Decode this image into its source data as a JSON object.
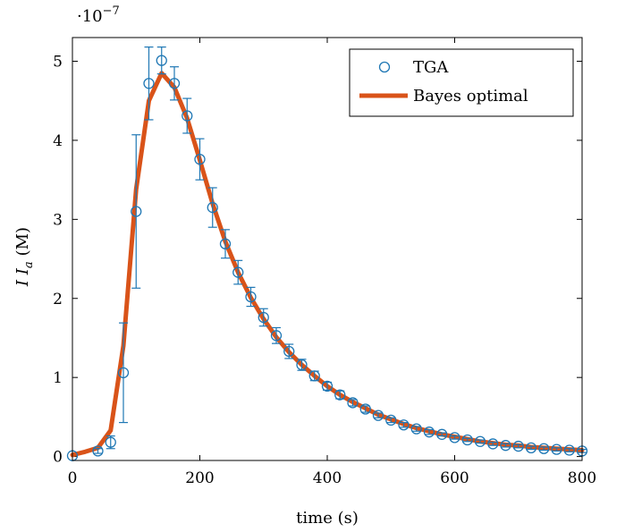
{
  "chart_data": {
    "type": "scatter",
    "title": "",
    "xlabel": "time (s)",
    "ylabel_main": "I I",
    "ylabel_sub": "a",
    "ylabel_unit": "(M)",
    "y_scale_base": "·10",
    "y_scale_exp": "−7",
    "xlim": [
      0,
      800
    ],
    "ylim": [
      -0.05,
      5.3
    ],
    "x_ticks": [
      0,
      200,
      400,
      600,
      800
    ],
    "x_tick_labels": [
      "0",
      "200",
      "400",
      "600",
      "800"
    ],
    "y_ticks": [
      0,
      1,
      2,
      3,
      4,
      5
    ],
    "y_tick_labels": [
      "0",
      "1",
      "2",
      "3",
      "4",
      "5"
    ],
    "grid": false,
    "legend_position": "top-right",
    "colors": {
      "tga": "#1f77b4",
      "bayes": "#d95319"
    },
    "series": [
      {
        "name": "TGA",
        "kind": "markers-with-errorbars",
        "x": [
          0,
          40,
          60,
          80,
          100,
          120,
          140,
          160,
          180,
          200,
          220,
          240,
          260,
          280,
          300,
          320,
          340,
          360,
          380,
          400,
          420,
          440,
          460,
          480,
          500,
          520,
          540,
          560,
          580,
          600,
          620,
          640,
          660,
          680,
          700,
          720,
          740,
          760,
          780,
          800
        ],
        "y": [
          0.01,
          0.07,
          0.18,
          1.06,
          3.1,
          4.72,
          5.01,
          4.72,
          4.31,
          3.76,
          3.15,
          2.69,
          2.33,
          2.02,
          1.76,
          1.53,
          1.33,
          1.16,
          1.02,
          0.89,
          0.78,
          0.68,
          0.6,
          0.52,
          0.46,
          0.4,
          0.35,
          0.31,
          0.28,
          0.24,
          0.21,
          0.19,
          0.16,
          0.14,
          0.13,
          0.11,
          0.1,
          0.09,
          0.08,
          0.07
        ],
        "err": [
          0.0,
          0.03,
          0.08,
          0.63,
          0.97,
          0.46,
          0.17,
          0.21,
          0.22,
          0.26,
          0.25,
          0.18,
          0.15,
          0.12,
          0.11,
          0.1,
          0.09,
          0.07,
          0.06,
          0.05,
          0.05,
          0.04,
          0.04,
          0.03,
          0.03,
          0.03,
          0.03,
          0.03,
          0.02,
          0.02,
          0.02,
          0.02,
          0.02,
          0.02,
          0.02,
          0.02,
          0.02,
          0.02,
          0.02,
          0.02
        ]
      },
      {
        "name": "Bayes optimal",
        "kind": "line",
        "x": [
          0,
          20,
          40,
          60,
          80,
          100,
          120,
          140,
          160,
          180,
          200,
          220,
          240,
          260,
          280,
          300,
          320,
          340,
          360,
          380,
          400,
          420,
          440,
          460,
          480,
          500,
          520,
          540,
          560,
          580,
          600,
          620,
          640,
          660,
          680,
          700,
          720,
          740,
          760,
          780,
          800
        ],
        "y": [
          0.02,
          0.06,
          0.11,
          0.33,
          1.4,
          3.38,
          4.5,
          4.85,
          4.67,
          4.28,
          3.75,
          3.2,
          2.72,
          2.33,
          2.01,
          1.74,
          1.51,
          1.32,
          1.16,
          1.02,
          0.89,
          0.78,
          0.69,
          0.61,
          0.53,
          0.47,
          0.41,
          0.36,
          0.32,
          0.28,
          0.25,
          0.22,
          0.19,
          0.17,
          0.15,
          0.14,
          0.12,
          0.11,
          0.1,
          0.09,
          0.08
        ]
      }
    ]
  }
}
